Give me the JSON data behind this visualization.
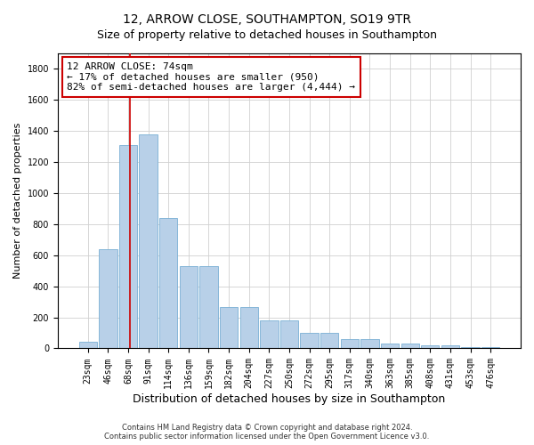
{
  "title": "12, ARROW CLOSE, SOUTHAMPTON, SO19 9TR",
  "subtitle": "Size of property relative to detached houses in Southampton",
  "xlabel": "Distribution of detached houses by size in Southampton",
  "ylabel": "Number of detached properties",
  "categories": [
    "23sqm",
    "46sqm",
    "68sqm",
    "91sqm",
    "114sqm",
    "136sqm",
    "159sqm",
    "182sqm",
    "204sqm",
    "227sqm",
    "250sqm",
    "272sqm",
    "295sqm",
    "317sqm",
    "340sqm",
    "363sqm",
    "385sqm",
    "408sqm",
    "431sqm",
    "453sqm",
    "476sqm"
  ],
  "values": [
    45,
    640,
    1310,
    1380,
    840,
    530,
    530,
    265,
    265,
    180,
    180,
    100,
    100,
    60,
    60,
    30,
    30,
    20,
    20,
    10,
    10
  ],
  "bar_color": "#b8d0e8",
  "bar_edge_color": "#7aafd4",
  "annotation_text": "12 ARROW CLOSE: 74sqm\n← 17% of detached houses are smaller (950)\n82% of semi-detached houses are larger (4,444) →",
  "annotation_box_color": "#ffffff",
  "annotation_box_edge": "#cc0000",
  "vline_color": "#cc0000",
  "vline_x": 2.1,
  "footnote": "Contains HM Land Registry data © Crown copyright and database right 2024.\nContains public sector information licensed under the Open Government Licence v3.0.",
  "ylim": [
    0,
    1900
  ],
  "yticks": [
    0,
    200,
    400,
    600,
    800,
    1000,
    1200,
    1400,
    1600,
    1800
  ],
  "background_color": "#ffffff",
  "grid_color": "#d0d0d0",
  "title_fontsize": 10,
  "ylabel_fontsize": 8,
  "xlabel_fontsize": 9,
  "tick_fontsize": 7,
  "annot_fontsize": 8,
  "footnote_fontsize": 6
}
